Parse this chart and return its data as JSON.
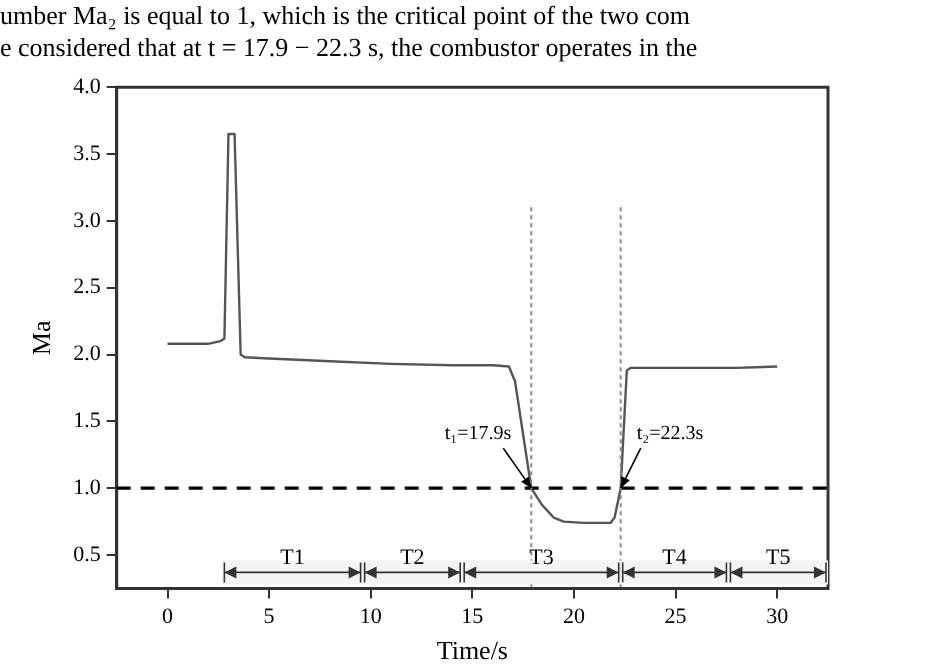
{
  "chart_data": {
    "type": "line",
    "xlabel": "Time/s",
    "ylabel": "Ma",
    "x": [
      0,
      1,
      2,
      2.6,
      2.8,
      3.0,
      3.3,
      3.6,
      3.8,
      5,
      8,
      11,
      14,
      16,
      16.8,
      17.1,
      17.5,
      17.9,
      18.4,
      19.0,
      19.5,
      20.5,
      21.8,
      22.0,
      22.3,
      22.6,
      22.8,
      25,
      28,
      30
    ],
    "series": [
      {
        "color": "#555555",
        "values": [
          2.08,
          2.08,
          2.08,
          2.1,
          2.12,
          3.65,
          3.65,
          2.0,
          1.98,
          1.97,
          1.95,
          1.93,
          1.92,
          1.92,
          1.91,
          1.8,
          1.4,
          1.0,
          0.88,
          0.78,
          0.75,
          0.74,
          0.74,
          0.78,
          1.0,
          1.88,
          1.9,
          1.9,
          1.9,
          1.91
        ]
      }
    ],
    "xlim": [
      -2.5,
      32.5
    ],
    "ylim": [
      0.25,
      4.0
    ],
    "xticks": [
      0,
      5,
      10,
      15,
      20,
      25,
      30
    ],
    "yticks": [
      0.5,
      {
        "value": 1,
        "label": "1.0"
      },
      1.5,
      {
        "value": 2,
        "label": "2.0"
      },
      2.5,
      {
        "value": 3,
        "label": "3.0"
      },
      3.5,
      {
        "value": 4,
        "label": "4.0"
      }
    ],
    "grid": false,
    "legend": false,
    "marker": "none",
    "line_style": "solid",
    "ref_lines": [
      {
        "axis": "y",
        "value": 1.0,
        "color": "#000000",
        "line_style": "dashed"
      },
      {
        "axis": "x",
        "value": 17.9,
        "color": "#888888",
        "line_style": "dotted"
      },
      {
        "axis": "x",
        "value": 22.3,
        "color": "#888888",
        "line_style": "dotted"
      }
    ],
    "bands": [
      {
        "axis": "x",
        "from": 2.7,
        "to": 9.6,
        "label": "T1"
      },
      {
        "axis": "x",
        "from": 9.6,
        "to": 14.5,
        "label": "T2"
      },
      {
        "axis": "x",
        "from": 14.5,
        "to": 22.3,
        "label": "T3"
      },
      {
        "axis": "x",
        "from": 22.3,
        "to": 27.6,
        "label": "T4"
      },
      {
        "axis": "x",
        "from": 27.6,
        "to": 32.5,
        "label": "T5"
      }
    ],
    "annotations": [
      "umber Ma₂ is equal to 1, which is the critical point of the two com",
      "e considered that at t = 17.9 − 22.3 s, the combustor operates in the",
      {
        "text": "t₁=17.9s",
        "x": 17.9,
        "y": 1.0
      },
      {
        "text": "t₂=22.3s",
        "x": 22.3,
        "y": 1.0
      }
    ]
  }
}
